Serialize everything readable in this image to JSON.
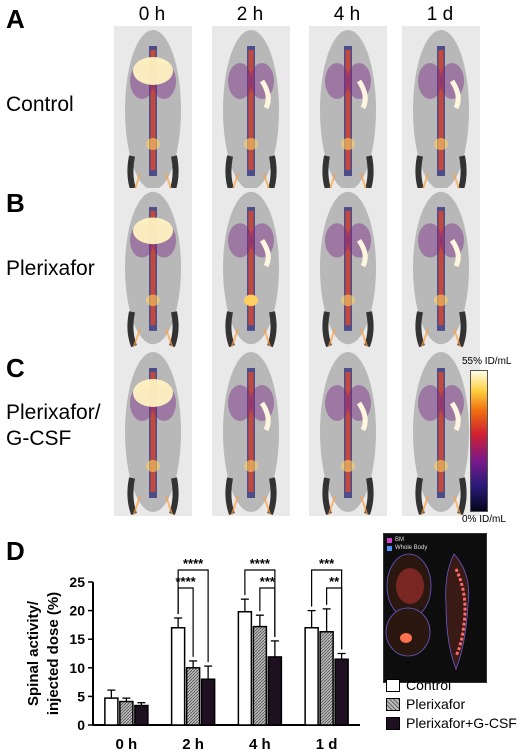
{
  "panels": {
    "A": "A",
    "B": "B",
    "C": "C",
    "D": "D"
  },
  "time_points": [
    "0 h",
    "2 h",
    "4 h",
    "1 d"
  ],
  "groups": {
    "control": "Control",
    "plerixafor": "Plerixafor",
    "combo_line1": "Plerixafor/",
    "combo_line2": "G-CSF"
  },
  "colorbar": {
    "max_label": "55% ID/mL",
    "min_label": "0% ID/mL"
  },
  "inset": {
    "legend": [
      "BM",
      "Whole Body"
    ]
  },
  "legend": {
    "control": "Control",
    "plerixafor": "Plerixafor",
    "combo": "Plerixafor+G-CSF"
  },
  "colors": {
    "control": "#ffffff",
    "plerixafor": "#9a9a9a",
    "combo": "#1e1020"
  },
  "chart_data": {
    "type": "bar",
    "categories": [
      "0 h",
      "2 h",
      "4 h",
      "1 d"
    ],
    "ylabel": "Spinal activity/\ninjected dose (%)",
    "ylim": [
      0,
      25
    ],
    "yticks": [
      0,
      5,
      10,
      15,
      20,
      25
    ],
    "series": [
      {
        "name": "Control",
        "values": [
          4.7,
          17.0,
          19.8,
          17.0
        ],
        "errors": [
          1.4,
          1.7,
          2.2,
          3.0
        ]
      },
      {
        "name": "Plerixafor",
        "values": [
          4.1,
          10.0,
          17.2,
          16.3
        ],
        "errors": [
          0.6,
          1.2,
          2.0,
          4.0
        ]
      },
      {
        "name": "Plerixafor+G-CSF",
        "values": [
          3.4,
          8.0,
          11.9,
          11.5
        ],
        "errors": [
          0.5,
          2.3,
          2.8,
          1.0
        ]
      }
    ],
    "significance": [
      {
        "category": "2 h",
        "from": 0,
        "to": 2,
        "label": "****"
      },
      {
        "category": "2 h",
        "from": 0,
        "to": 1,
        "label": "****"
      },
      {
        "category": "4 h",
        "from": 0,
        "to": 2,
        "label": "****"
      },
      {
        "category": "4 h",
        "from": 1,
        "to": 2,
        "label": "***"
      },
      {
        "category": "1 d",
        "from": 0,
        "to": 2,
        "label": "***"
      },
      {
        "category": "1 d",
        "from": 1,
        "to": 2,
        "label": "**"
      }
    ]
  }
}
